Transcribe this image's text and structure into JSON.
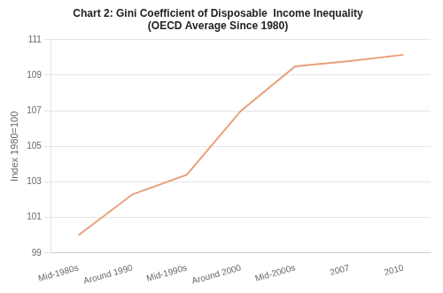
{
  "chart_data": {
    "type": "line",
    "title": "Chart 2: Gini Coefficient of Disposable  Income Inequality",
    "subtitle": "(OECD Average Since 1980)",
    "y_label": "Index 1980=100",
    "categories": [
      "Mid-1980s",
      "Around 1990",
      "Mid-1990s",
      "Around 2000",
      "Mid-2000s",
      "2007",
      "2010"
    ],
    "values": [
      100.0,
      102.3,
      103.4,
      107.0,
      109.5,
      109.8,
      110.15
    ],
    "color": "#E8A07A",
    "ylim": [
      99,
      111
    ],
    "yticks": [
      99,
      101,
      103,
      105,
      107,
      109,
      111
    ],
    "grid": true
  }
}
